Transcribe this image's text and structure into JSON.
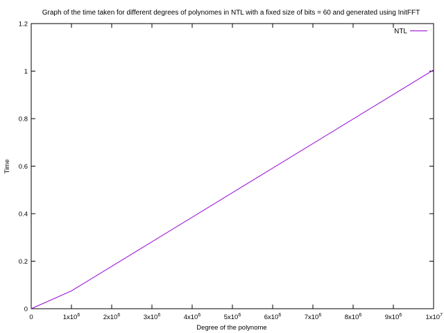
{
  "chart_data": {
    "type": "line",
    "title": "Graph of the time taken for different degrees of polynomes in NTL with a fixed size of bits = 60 and generated using InitFFT",
    "xlabel": "Degree of the polynome",
    "ylabel": "Time",
    "xlim": [
      0,
      10000000
    ],
    "ylim": [
      0,
      1.2
    ],
    "x_ticks": [
      {
        "value": 0,
        "mantissa": "0",
        "exponent": ""
      },
      {
        "value": 1000000,
        "mantissa": "1x10",
        "exponent": "6"
      },
      {
        "value": 2000000,
        "mantissa": "2x10",
        "exponent": "6"
      },
      {
        "value": 3000000,
        "mantissa": "3x10",
        "exponent": "6"
      },
      {
        "value": 4000000,
        "mantissa": "4x10",
        "exponent": "6"
      },
      {
        "value": 5000000,
        "mantissa": "5x10",
        "exponent": "6"
      },
      {
        "value": 6000000,
        "mantissa": "6x10",
        "exponent": "6"
      },
      {
        "value": 7000000,
        "mantissa": "7x10",
        "exponent": "6"
      },
      {
        "value": 8000000,
        "mantissa": "8x10",
        "exponent": "6"
      },
      {
        "value": 9000000,
        "mantissa": "9x10",
        "exponent": "6"
      },
      {
        "value": 10000000,
        "mantissa": "1x10",
        "exponent": "7"
      }
    ],
    "y_ticks": [
      {
        "value": 0,
        "label": "0"
      },
      {
        "value": 0.2,
        "label": "0.2"
      },
      {
        "value": 0.4,
        "label": "0.4"
      },
      {
        "value": 0.6,
        "label": "0.6"
      },
      {
        "value": 0.8,
        "label": "0.8"
      },
      {
        "value": 1.0,
        "label": "1"
      },
      {
        "value": 1.2,
        "label": "1.2"
      }
    ],
    "grid": false,
    "legend": {
      "position": "top-right"
    },
    "series": [
      {
        "name": "NTL",
        "color": "#9400d3",
        "x": [
          0,
          1000000,
          10000000
        ],
        "y": [
          0,
          0.075,
          1.005
        ]
      }
    ]
  }
}
